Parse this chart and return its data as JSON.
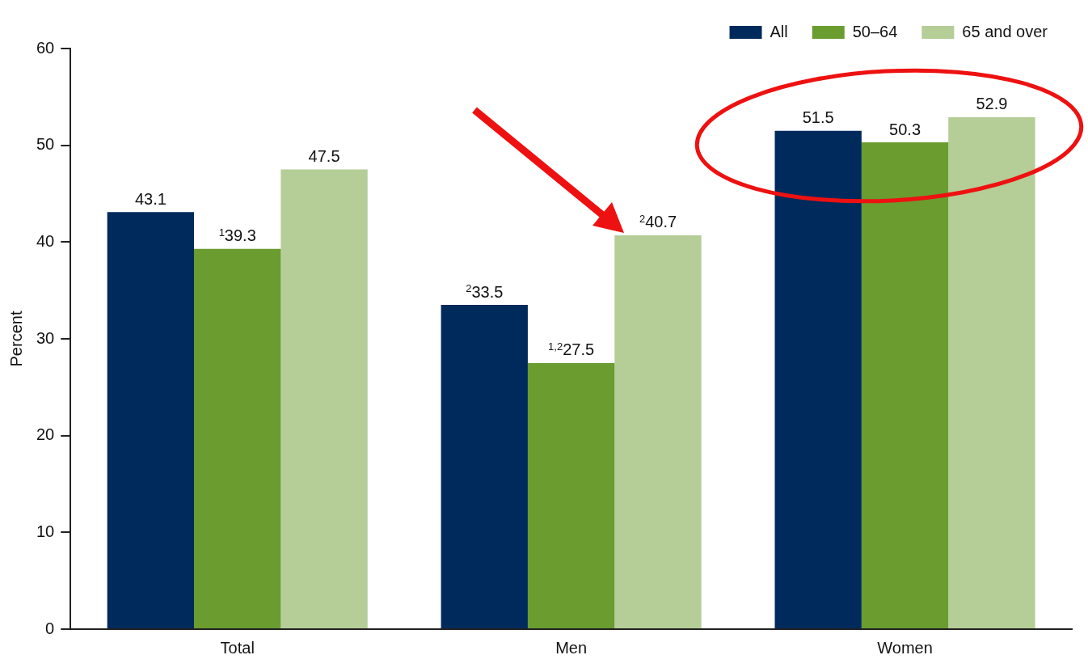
{
  "chart_data": {
    "type": "bar",
    "ylabel": "Percent",
    "categories": [
      "Total",
      "Men",
      "Women"
    ],
    "series": [
      {
        "name": "All",
        "color": "#002a5c",
        "values": [
          43.1,
          33.5,
          51.5
        ],
        "value_labels": [
          "43.1",
          "$^{2}$33.5",
          "51.5"
        ]
      },
      {
        "name": "50–64",
        "color": "#6a9c30",
        "values": [
          39.3,
          27.5,
          50.3
        ],
        "value_labels": [
          "$^{1}$39.3",
          "$^{1,2}$27.5",
          "50.3"
        ]
      },
      {
        "name": "65 and over",
        "color": "#b5cd96",
        "values": [
          47.5,
          40.7,
          52.9
        ],
        "value_labels": [
          "47.5",
          "$^{2}$40.7",
          "52.9"
        ]
      }
    ],
    "ylim": [
      0,
      60
    ],
    "yticks": [
      0,
      10,
      20,
      30,
      40,
      50,
      60
    ],
    "grid": false,
    "legend": "top right"
  }
}
